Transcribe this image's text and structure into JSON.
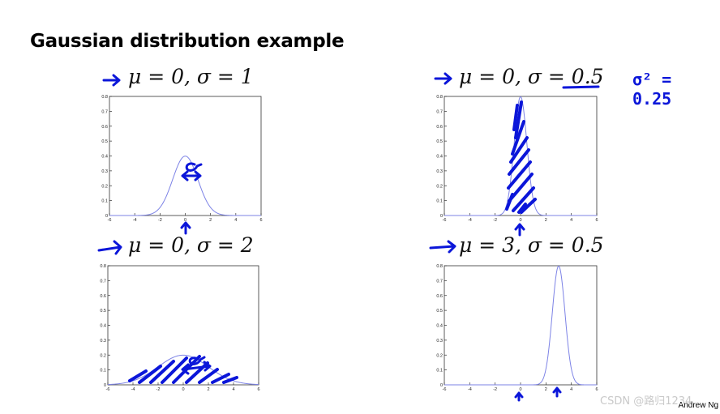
{
  "slide": {
    "title": "Gaussian distribution example",
    "credit": "Andrew Ng",
    "watermark": "CSDN @路归1234",
    "note": "σ² = 0.25"
  },
  "chart_data": [
    {
      "type": "line",
      "title": "μ = 0, σ = 1",
      "mu": 0,
      "sigma": 1,
      "xlim": [
        -6,
        6
      ],
      "ylim": [
        0,
        0.8
      ],
      "xticks": [
        -6,
        -4,
        -2,
        0,
        2,
        4,
        6
      ],
      "yticks": [
        0,
        0.1,
        0.2,
        0.3,
        0.4,
        0.5,
        0.6,
        0.7,
        0.8
      ],
      "color": "#7d83e6",
      "annotations": [
        "σ"
      ],
      "grid": false
    },
    {
      "type": "line",
      "title": "μ = 0, σ = 0.5",
      "mu": 0,
      "sigma": 0.5,
      "xlim": [
        -6,
        6
      ],
      "ylim": [
        0,
        0.8
      ],
      "xticks": [
        -6,
        -4,
        -2,
        0,
        2,
        4,
        6
      ],
      "yticks": [
        0,
        0.1,
        0.2,
        0.3,
        0.4,
        0.5,
        0.6,
        0.7,
        0.8
      ],
      "color": "#7d83e6",
      "grid": false
    },
    {
      "type": "line",
      "title": "μ = 0, σ = 2",
      "mu": 0,
      "sigma": 2,
      "xlim": [
        -6,
        6
      ],
      "ylim": [
        0,
        0.8
      ],
      "xticks": [
        -6,
        -4,
        -2,
        0,
        2,
        4,
        6
      ],
      "yticks": [
        0,
        0.1,
        0.2,
        0.3,
        0.4,
        0.5,
        0.6,
        0.7,
        0.8
      ],
      "color": "#7d83e6",
      "annotations": [
        "σ"
      ],
      "grid": false
    },
    {
      "type": "line",
      "title": "μ = 3, σ = 0.5",
      "mu": 3,
      "sigma": 0.5,
      "xlim": [
        -6,
        6
      ],
      "ylim": [
        0,
        0.8
      ],
      "xticks": [
        -6,
        -4,
        -2,
        0,
        2,
        4,
        6
      ],
      "yticks": [
        0,
        0.1,
        0.2,
        0.3,
        0.4,
        0.5,
        0.6,
        0.7,
        0.8
      ],
      "color": "#7d83e6",
      "annotations": [
        "3"
      ],
      "grid": false
    }
  ]
}
